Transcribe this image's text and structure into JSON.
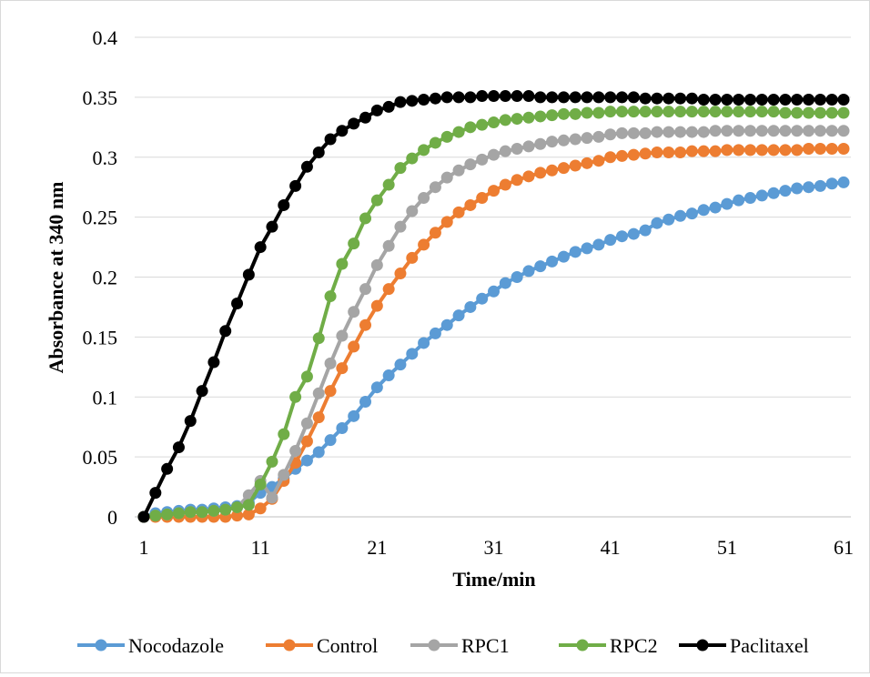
{
  "chart_data": {
    "type": "line",
    "title": "",
    "xlabel": "Time/min",
    "ylabel": "Absorbance at 340 nm",
    "xlim": [
      1,
      61
    ],
    "ylim": [
      0,
      0.4
    ],
    "x_ticks": [
      "1",
      "11",
      "21",
      "31",
      "41",
      "51",
      "61"
    ],
    "y_ticks": [
      "0",
      "0.05",
      "0.1",
      "0.15",
      "0.2",
      "0.25",
      "0.3",
      "0.35",
      "0.4"
    ],
    "grid": "horizontal",
    "legend_position": "bottom",
    "x": [
      1,
      2,
      3,
      4,
      5,
      6,
      7,
      8,
      9,
      10,
      11,
      12,
      13,
      14,
      15,
      16,
      17,
      18,
      19,
      20,
      21,
      22,
      23,
      24,
      25,
      26,
      27,
      28,
      29,
      30,
      31,
      32,
      33,
      34,
      35,
      36,
      37,
      38,
      39,
      40,
      41,
      42,
      43,
      44,
      45,
      46,
      47,
      48,
      49,
      50,
      51,
      52,
      53,
      54,
      55,
      56,
      57,
      58,
      59,
      60,
      61
    ],
    "series": [
      {
        "name": "Nocodazole",
        "color": "#5b9bd5",
        "values": [
          0,
          0.003,
          0.004,
          0.005,
          0.006,
          0.006,
          0.007,
          0.008,
          0.009,
          0.012,
          0.02,
          0.025,
          0.032,
          0.04,
          0.047,
          0.054,
          0.064,
          0.074,
          0.084,
          0.096,
          0.108,
          0.118,
          0.127,
          0.136,
          0.145,
          0.153,
          0.16,
          0.168,
          0.175,
          0.182,
          0.188,
          0.195,
          0.2,
          0.205,
          0.209,
          0.213,
          0.217,
          0.221,
          0.224,
          0.227,
          0.231,
          0.234,
          0.236,
          0.239,
          0.245,
          0.248,
          0.251,
          0.253,
          0.256,
          0.258,
          0.261,
          0.264,
          0.266,
          0.268,
          0.27,
          0.272,
          0.274,
          0.275,
          0.276,
          0.278,
          0.279
        ]
      },
      {
        "name": "Control",
        "color": "#ed7d31",
        "values": [
          0,
          0,
          0,
          0,
          0,
          0,
          0,
          0,
          0.001,
          0.002,
          0.007,
          0.015,
          0.03,
          0.045,
          0.063,
          0.083,
          0.105,
          0.124,
          0.142,
          0.16,
          0.176,
          0.19,
          0.203,
          0.216,
          0.227,
          0.237,
          0.246,
          0.254,
          0.26,
          0.266,
          0.272,
          0.277,
          0.281,
          0.284,
          0.287,
          0.289,
          0.291,
          0.293,
          0.295,
          0.297,
          0.3,
          0.301,
          0.302,
          0.303,
          0.304,
          0.304,
          0.304,
          0.305,
          0.305,
          0.305,
          0.306,
          0.306,
          0.306,
          0.306,
          0.306,
          0.306,
          0.306,
          0.307,
          0.307,
          0.307,
          0.307
        ]
      },
      {
        "name": "RPC1",
        "color": "#a5a5a5",
        "values": [
          0,
          0.001,
          0.002,
          0.003,
          0.004,
          0.004,
          0.005,
          0.006,
          0.008,
          0.018,
          0.03,
          0.016,
          0.035,
          0.055,
          0.078,
          0.103,
          0.128,
          0.151,
          0.171,
          0.19,
          0.21,
          0.226,
          0.242,
          0.255,
          0.266,
          0.275,
          0.283,
          0.289,
          0.294,
          0.298,
          0.302,
          0.305,
          0.307,
          0.309,
          0.311,
          0.313,
          0.314,
          0.315,
          0.316,
          0.317,
          0.319,
          0.32,
          0.32,
          0.32,
          0.321,
          0.321,
          0.321,
          0.321,
          0.321,
          0.322,
          0.322,
          0.322,
          0.322,
          0.322,
          0.322,
          0.322,
          0.322,
          0.322,
          0.322,
          0.322,
          0.322
        ]
      },
      {
        "name": "RPC2",
        "color": "#70ad47",
        "values": [
          0,
          0.001,
          0.002,
          0.003,
          0.004,
          0.004,
          0.005,
          0.006,
          0.008,
          0.01,
          0.027,
          0.046,
          0.069,
          0.1,
          0.117,
          0.149,
          0.184,
          0.211,
          0.228,
          0.249,
          0.264,
          0.277,
          0.291,
          0.299,
          0.306,
          0.312,
          0.317,
          0.321,
          0.325,
          0.327,
          0.329,
          0.331,
          0.332,
          0.333,
          0.334,
          0.335,
          0.336,
          0.336,
          0.337,
          0.337,
          0.338,
          0.338,
          0.338,
          0.338,
          0.338,
          0.338,
          0.338,
          0.338,
          0.338,
          0.338,
          0.338,
          0.338,
          0.338,
          0.338,
          0.338,
          0.337,
          0.337,
          0.337,
          0.337,
          0.337,
          0.337
        ]
      },
      {
        "name": "Paclitaxel",
        "color": "#000000",
        "values": [
          0,
          0.02,
          0.04,
          0.058,
          0.08,
          0.105,
          0.129,
          0.155,
          0.178,
          0.202,
          0.225,
          0.242,
          0.26,
          0.276,
          0.292,
          0.304,
          0.315,
          0.322,
          0.328,
          0.333,
          0.339,
          0.342,
          0.346,
          0.347,
          0.348,
          0.349,
          0.35,
          0.35,
          0.35,
          0.351,
          0.351,
          0.351,
          0.351,
          0.351,
          0.35,
          0.35,
          0.35,
          0.35,
          0.35,
          0.35,
          0.35,
          0.35,
          0.35,
          0.349,
          0.349,
          0.349,
          0.349,
          0.349,
          0.348,
          0.348,
          0.348,
          0.348,
          0.348,
          0.348,
          0.348,
          0.348,
          0.348,
          0.348,
          0.348,
          0.348,
          0.348
        ]
      }
    ]
  }
}
